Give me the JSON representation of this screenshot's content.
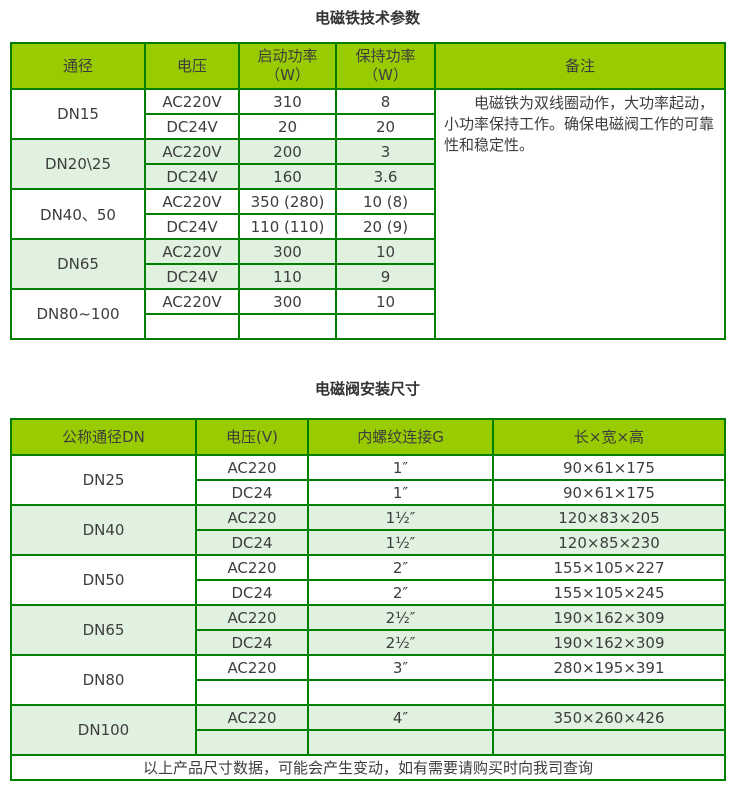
{
  "colors": {
    "header_bg": "#99cc00",
    "shaded_row_bg": "#e0f1e0",
    "border": "#008000",
    "text": "#3d3d3d"
  },
  "table1": {
    "title": "电磁铁技术参数",
    "headers": [
      "通径",
      "电压",
      "启动功率\n（W）",
      "保持功率\n（W）",
      "备注"
    ],
    "remark": "电磁铁为双线圈动作，大功率起动，小功率保持工作。确保电磁阀工作的可靠性和稳定性。",
    "groups": [
      {
        "label": "DN15",
        "shaded": false,
        "rows": [
          [
            "AC220V",
            "310",
            "8"
          ],
          [
            "DC24V",
            "20",
            "20"
          ]
        ]
      },
      {
        "label": "DN20\\25",
        "shaded": true,
        "rows": [
          [
            "AC220V",
            "200",
            "3"
          ],
          [
            "DC24V",
            "160",
            "3.6"
          ]
        ]
      },
      {
        "label": "DN40、50",
        "shaded": false,
        "rows": [
          [
            "AC220V",
            "350 (280)",
            "10 (8)"
          ],
          [
            "DC24V",
            "110 (110)",
            "20 (9)"
          ]
        ]
      },
      {
        "label": "DN65",
        "shaded": true,
        "rows": [
          [
            "AC220V",
            "300",
            "10"
          ],
          [
            "DC24V",
            "110",
            "9"
          ]
        ]
      },
      {
        "label": "DN80~100",
        "shaded": false,
        "rows": [
          [
            "AC220V",
            "300",
            "10"
          ],
          [
            "",
            "",
            ""
          ]
        ]
      }
    ]
  },
  "table2": {
    "title": "电磁阀安装尺寸",
    "headers": [
      "公称通径DN",
      "电压(V)",
      "内螺纹连接G",
      "长×宽×高"
    ],
    "groups": [
      {
        "label": "DN25",
        "shaded": false,
        "rows": [
          [
            "AC220",
            "1″",
            "90×61×175"
          ],
          [
            "DC24",
            "1″",
            "90×61×175"
          ]
        ]
      },
      {
        "label": "DN40",
        "shaded": true,
        "rows": [
          [
            "AC220",
            "1½″",
            "120×83×205"
          ],
          [
            "DC24",
            "1½″",
            "120×85×230"
          ]
        ]
      },
      {
        "label": "DN50",
        "shaded": false,
        "rows": [
          [
            "AC220",
            "2″",
            "155×105×227"
          ],
          [
            "DC24",
            "2″",
            "155×105×245"
          ]
        ]
      },
      {
        "label": "DN65",
        "shaded": true,
        "rows": [
          [
            "AC220",
            "2½″",
            "190×162×309"
          ],
          [
            "DC24",
            "2½″",
            "190×162×309"
          ]
        ]
      },
      {
        "label": "DN80",
        "shaded": false,
        "rows": [
          [
            "AC220",
            "3″",
            "280×195×391"
          ],
          [
            "",
            "",
            ""
          ]
        ]
      },
      {
        "label": "DN100",
        "shaded": true,
        "rows": [
          [
            "AC220",
            "4″",
            "350×260×426"
          ],
          [
            "",
            "",
            ""
          ]
        ]
      }
    ],
    "footer": "以上产品尺寸数据，可能会产生变动，如有需要请购买时向我司查询"
  }
}
